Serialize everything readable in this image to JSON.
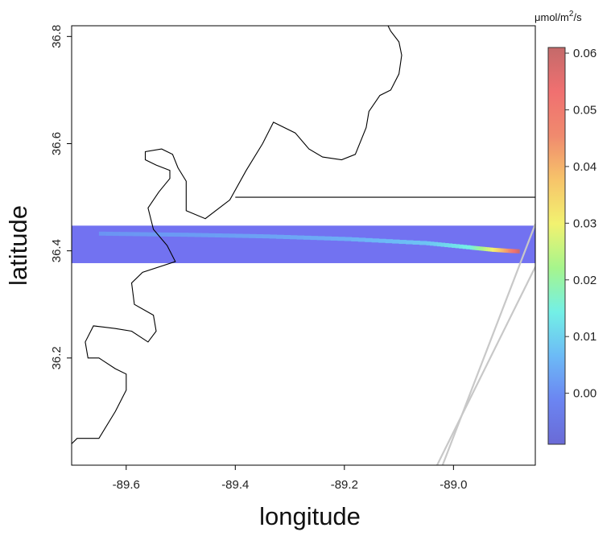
{
  "chart_data": {
    "type": "heatmap",
    "xlabel": "longitude",
    "ylabel": "latitude",
    "xlim": [
      -89.7,
      -88.85
    ],
    "ylim": [
      36.0,
      36.82
    ],
    "x_ticks": [
      -89.6,
      -89.4,
      -89.2,
      -89.0
    ],
    "x_tick_labels": [
      "-89.6",
      "-89.4",
      "-89.2",
      "-89.0"
    ],
    "y_ticks": [
      36.2,
      36.4,
      36.6,
      36.8
    ],
    "y_tick_labels": [
      "36.2",
      "36.4",
      "36.6",
      "36.8"
    ],
    "colorbar": {
      "unit_prefix": "μmol/m",
      "unit_exponent": "2",
      "unit_suffix": "/s",
      "range": [
        -0.009,
        0.061
      ],
      "ticks": [
        0.0,
        0.01,
        0.02,
        0.03,
        0.04,
        0.05,
        0.06
      ],
      "tick_labels": [
        "0.00",
        "0.01",
        "0.02",
        "0.03",
        "0.04",
        "0.05",
        "0.06"
      ],
      "colors": [
        "#6a6ad6",
        "#6b85f2",
        "#6cbaf6",
        "#73f0e6",
        "#a6f58c",
        "#f2f270",
        "#f7c46a",
        "#f08a6e",
        "#f07070",
        "#c46a6a"
      ]
    },
    "band": {
      "lat_range": [
        36.377,
        36.447
      ],
      "background_value": 0.0,
      "background_color": "#6a6af0"
    },
    "plume": {
      "points": [
        {
          "lon": -89.65,
          "lat": 36.432,
          "value": 0.001
        },
        {
          "lon": -89.5,
          "lat": 36.43,
          "value": 0.002
        },
        {
          "lon": -89.35,
          "lat": 36.427,
          "value": 0.003
        },
        {
          "lon": -89.2,
          "lat": 36.422,
          "value": 0.005
        },
        {
          "lon": -89.05,
          "lat": 36.414,
          "value": 0.008
        },
        {
          "lon": -88.97,
          "lat": 36.406,
          "value": 0.015
        },
        {
          "lon": -88.93,
          "lat": 36.402,
          "value": 0.03
        },
        {
          "lon": -88.9,
          "lat": 36.4,
          "value": 0.045
        },
        {
          "lon": -88.88,
          "lat": 36.399,
          "value": 0.06
        }
      ]
    },
    "boundaries": {
      "river": [
        [
          -89.7,
          36.04
        ],
        [
          -89.69,
          36.05
        ],
        [
          -89.67,
          36.05
        ],
        [
          -89.65,
          36.05
        ],
        [
          -89.62,
          36.1
        ],
        [
          -89.6,
          36.14
        ],
        [
          -89.6,
          36.17
        ],
        [
          -89.62,
          36.18
        ],
        [
          -89.65,
          36.2
        ],
        [
          -89.67,
          36.2
        ],
        [
          -89.675,
          36.23
        ],
        [
          -89.66,
          36.26
        ],
        [
          -89.62,
          36.255
        ],
        [
          -89.59,
          36.25
        ],
        [
          -89.56,
          36.23
        ],
        [
          -89.545,
          36.25
        ],
        [
          -89.55,
          36.28
        ],
        [
          -89.585,
          36.3
        ],
        [
          -89.59,
          36.34
        ],
        [
          -89.57,
          36.36
        ],
        [
          -89.51,
          36.38
        ],
        [
          -89.525,
          36.41
        ],
        [
          -89.55,
          36.44
        ],
        [
          -89.56,
          36.48
        ],
        [
          -89.54,
          36.51
        ],
        [
          -89.52,
          36.535
        ],
        [
          -89.52,
          36.55
        ],
        [
          -89.545,
          36.56
        ],
        [
          -89.565,
          36.57
        ],
        [
          -89.565,
          36.585
        ],
        [
          -89.535,
          36.59
        ],
        [
          -89.515,
          36.58
        ],
        [
          -89.505,
          36.555
        ],
        [
          -89.49,
          36.53
        ],
        [
          -89.49,
          36.5
        ],
        [
          -89.49,
          36.475
        ],
        [
          -89.455,
          36.46
        ],
        [
          -89.41,
          36.495
        ],
        [
          -89.38,
          36.55
        ],
        [
          -89.35,
          36.6
        ],
        [
          -89.33,
          36.64
        ],
        [
          -89.29,
          36.62
        ],
        [
          -89.265,
          36.59
        ],
        [
          -89.24,
          36.575
        ],
        [
          -89.205,
          36.57
        ],
        [
          -89.18,
          36.58
        ],
        [
          -89.16,
          36.63
        ],
        [
          -89.155,
          36.66
        ],
        [
          -89.135,
          36.69
        ],
        [
          -89.115,
          36.7
        ],
        [
          -89.1,
          36.73
        ],
        [
          -89.095,
          36.765
        ],
        [
          -89.1,
          36.79
        ],
        [
          -89.115,
          36.81
        ],
        [
          -89.12,
          36.82
        ]
      ],
      "state_line": [
        [
          -89.4,
          36.5
        ],
        [
          -88.85,
          36.5
        ]
      ],
      "gray_tracks": [
        [
          [
            -89.03,
            36.0
          ],
          [
            -88.85,
            36.37
          ]
        ],
        [
          [
            -89.02,
            36.0
          ],
          [
            -88.85,
            36.45
          ]
        ]
      ]
    }
  }
}
